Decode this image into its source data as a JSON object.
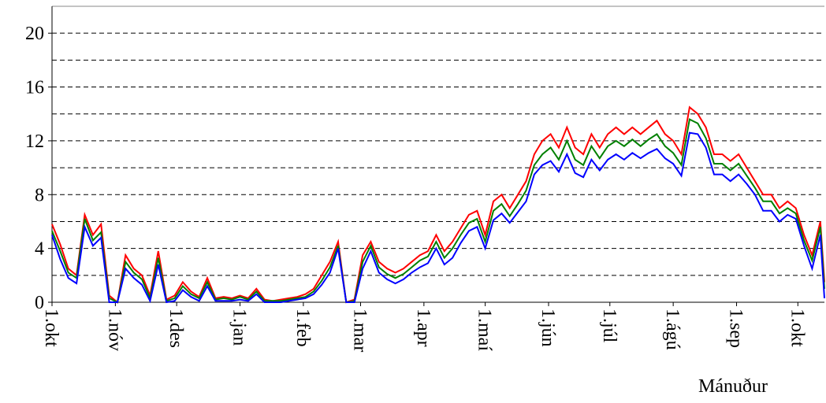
{
  "chart_data": {
    "type": "line",
    "xlabel": "Mánuður",
    "x": [
      0,
      4,
      8,
      12,
      16,
      20,
      24,
      28,
      32,
      36,
      40,
      44,
      48,
      52,
      56,
      60,
      64,
      68,
      72,
      76,
      80,
      84,
      88,
      92,
      96,
      100,
      104,
      108,
      112,
      116,
      120,
      124,
      128,
      132,
      136,
      140,
      144,
      148,
      152,
      156,
      160,
      164,
      168,
      172,
      176,
      180,
      184,
      188,
      192,
      196,
      200,
      204,
      208,
      212,
      216,
      220,
      224,
      228,
      232,
      236,
      240,
      244,
      248,
      252,
      256,
      260,
      264,
      268,
      272,
      276,
      280,
      284,
      288,
      292,
      296,
      300,
      304,
      308,
      312,
      316,
      320,
      324,
      328,
      332,
      336,
      340,
      344,
      348,
      352,
      356,
      360,
      364,
      368,
      372,
      376,
      378
    ],
    "series": [
      {
        "color": "#ff0000",
        "values": [
          5.8,
          4.3,
          2.5,
          2.0,
          6.5,
          5.0,
          5.8,
          0.5,
          0,
          3.5,
          2.5,
          2.0,
          0.5,
          3.8,
          0.2,
          0.5,
          1.5,
          0.8,
          0.4,
          1.8,
          0.3,
          0.4,
          0.3,
          0.5,
          0.3,
          1.0,
          0.2,
          0.1,
          0.2,
          0.3,
          0.4,
          0.6,
          1.0,
          2.0,
          3.0,
          4.5,
          0,
          0.2,
          3.5,
          4.5,
          3.0,
          2.5,
          2.2,
          2.5,
          3.0,
          3.5,
          3.8,
          5.0,
          3.8,
          4.5,
          5.5,
          6.5,
          6.8,
          5.0,
          7.5,
          8.0,
          7.0,
          8.0,
          9.0,
          11.0,
          12.0,
          12.5,
          11.5,
          13.0,
          11.5,
          11.0,
          12.5,
          11.5,
          12.5,
          13.0,
          12.5,
          13.0,
          12.5,
          13.0,
          13.5,
          12.5,
          12.0,
          11.0,
          14.5,
          14.0,
          13.0,
          11.0,
          11.0,
          10.5,
          11.0,
          10.0,
          9.0,
          8.0,
          8.0,
          7.0,
          7.5,
          7.0,
          5.0,
          3.5,
          6.0,
          1.5
        ]
      },
      {
        "color": "#008000",
        "values": [
          5.3,
          3.8,
          2.2,
          1.8,
          6.2,
          4.6,
          5.2,
          0.3,
          0,
          3.0,
          2.2,
          1.7,
          0.3,
          3.3,
          0.1,
          0.3,
          1.2,
          0.6,
          0.3,
          1.5,
          0.2,
          0.3,
          0.2,
          0.4,
          0.2,
          0.8,
          0.1,
          0.1,
          0.1,
          0.2,
          0.3,
          0.4,
          0.8,
          1.6,
          2.6,
          4.2,
          0,
          0.1,
          3.0,
          4.2,
          2.6,
          2.1,
          1.8,
          2.1,
          2.6,
          3.1,
          3.4,
          4.5,
          3.3,
          4.0,
          5.0,
          5.9,
          6.2,
          4.5,
          6.8,
          7.3,
          6.4,
          7.3,
          8.3,
          10.2,
          11.0,
          11.5,
          10.6,
          12.0,
          10.6,
          10.2,
          11.6,
          10.7,
          11.6,
          12.0,
          11.6,
          12.1,
          11.6,
          12.1,
          12.5,
          11.6,
          11.1,
          10.2,
          13.6,
          13.3,
          12.2,
          10.3,
          10.3,
          9.8,
          10.3,
          9.4,
          8.5,
          7.5,
          7.5,
          6.6,
          7.0,
          6.6,
          4.6,
          3.1,
          5.6,
          1.0
        ]
      },
      {
        "color": "#0000ff",
        "values": [
          5.0,
          3.2,
          1.8,
          1.4,
          5.6,
          4.2,
          4.8,
          0,
          0,
          2.5,
          1.8,
          1.3,
          0.1,
          2.8,
          0,
          0.1,
          0.9,
          0.4,
          0.1,
          1.2,
          0.1,
          0.1,
          0.1,
          0.2,
          0.1,
          0.6,
          0,
          0,
          0,
          0.1,
          0.2,
          0.3,
          0.6,
          1.3,
          2.2,
          4.0,
          0,
          0,
          2.5,
          3.8,
          2.2,
          1.7,
          1.4,
          1.7,
          2.2,
          2.6,
          2.9,
          4.0,
          2.8,
          3.3,
          4.4,
          5.3,
          5.6,
          4.0,
          6.1,
          6.6,
          5.9,
          6.7,
          7.5,
          9.5,
          10.2,
          10.5,
          9.7,
          11.0,
          9.6,
          9.3,
          10.6,
          9.8,
          10.6,
          11.0,
          10.6,
          11.1,
          10.7,
          11.1,
          11.4,
          10.7,
          10.3,
          9.4,
          12.6,
          12.5,
          11.5,
          9.5,
          9.5,
          9.0,
          9.5,
          8.8,
          8.0,
          6.8,
          6.8,
          6.0,
          6.5,
          6.2,
          4.2,
          2.5,
          5.0,
          0.3
        ]
      }
    ],
    "xlim": [
      0,
      378
    ],
    "xticks": [
      {
        "value": 0,
        "label": "1.okt"
      },
      {
        "value": 31,
        "label": "1.nóv"
      },
      {
        "value": 61,
        "label": "1.des"
      },
      {
        "value": 92,
        "label": "1.jan"
      },
      {
        "value": 123,
        "label": "1.feb"
      },
      {
        "value": 151,
        "label": "1.mar"
      },
      {
        "value": 182,
        "label": "1.apr"
      },
      {
        "value": 212,
        "label": "1.maí"
      },
      {
        "value": 243,
        "label": "1.jún"
      },
      {
        "value": 273,
        "label": "1.júl"
      },
      {
        "value": 304,
        "label": "1.ágú"
      },
      {
        "value": 335,
        "label": "1.sep"
      },
      {
        "value": 365,
        "label": "1.okt"
      }
    ],
    "ylim": [
      0,
      22
    ],
    "yticks": [
      0,
      4,
      8,
      12,
      16,
      20
    ],
    "ygrid": [
      2,
      4,
      6,
      8,
      10,
      12,
      14,
      16,
      18,
      20
    ]
  }
}
